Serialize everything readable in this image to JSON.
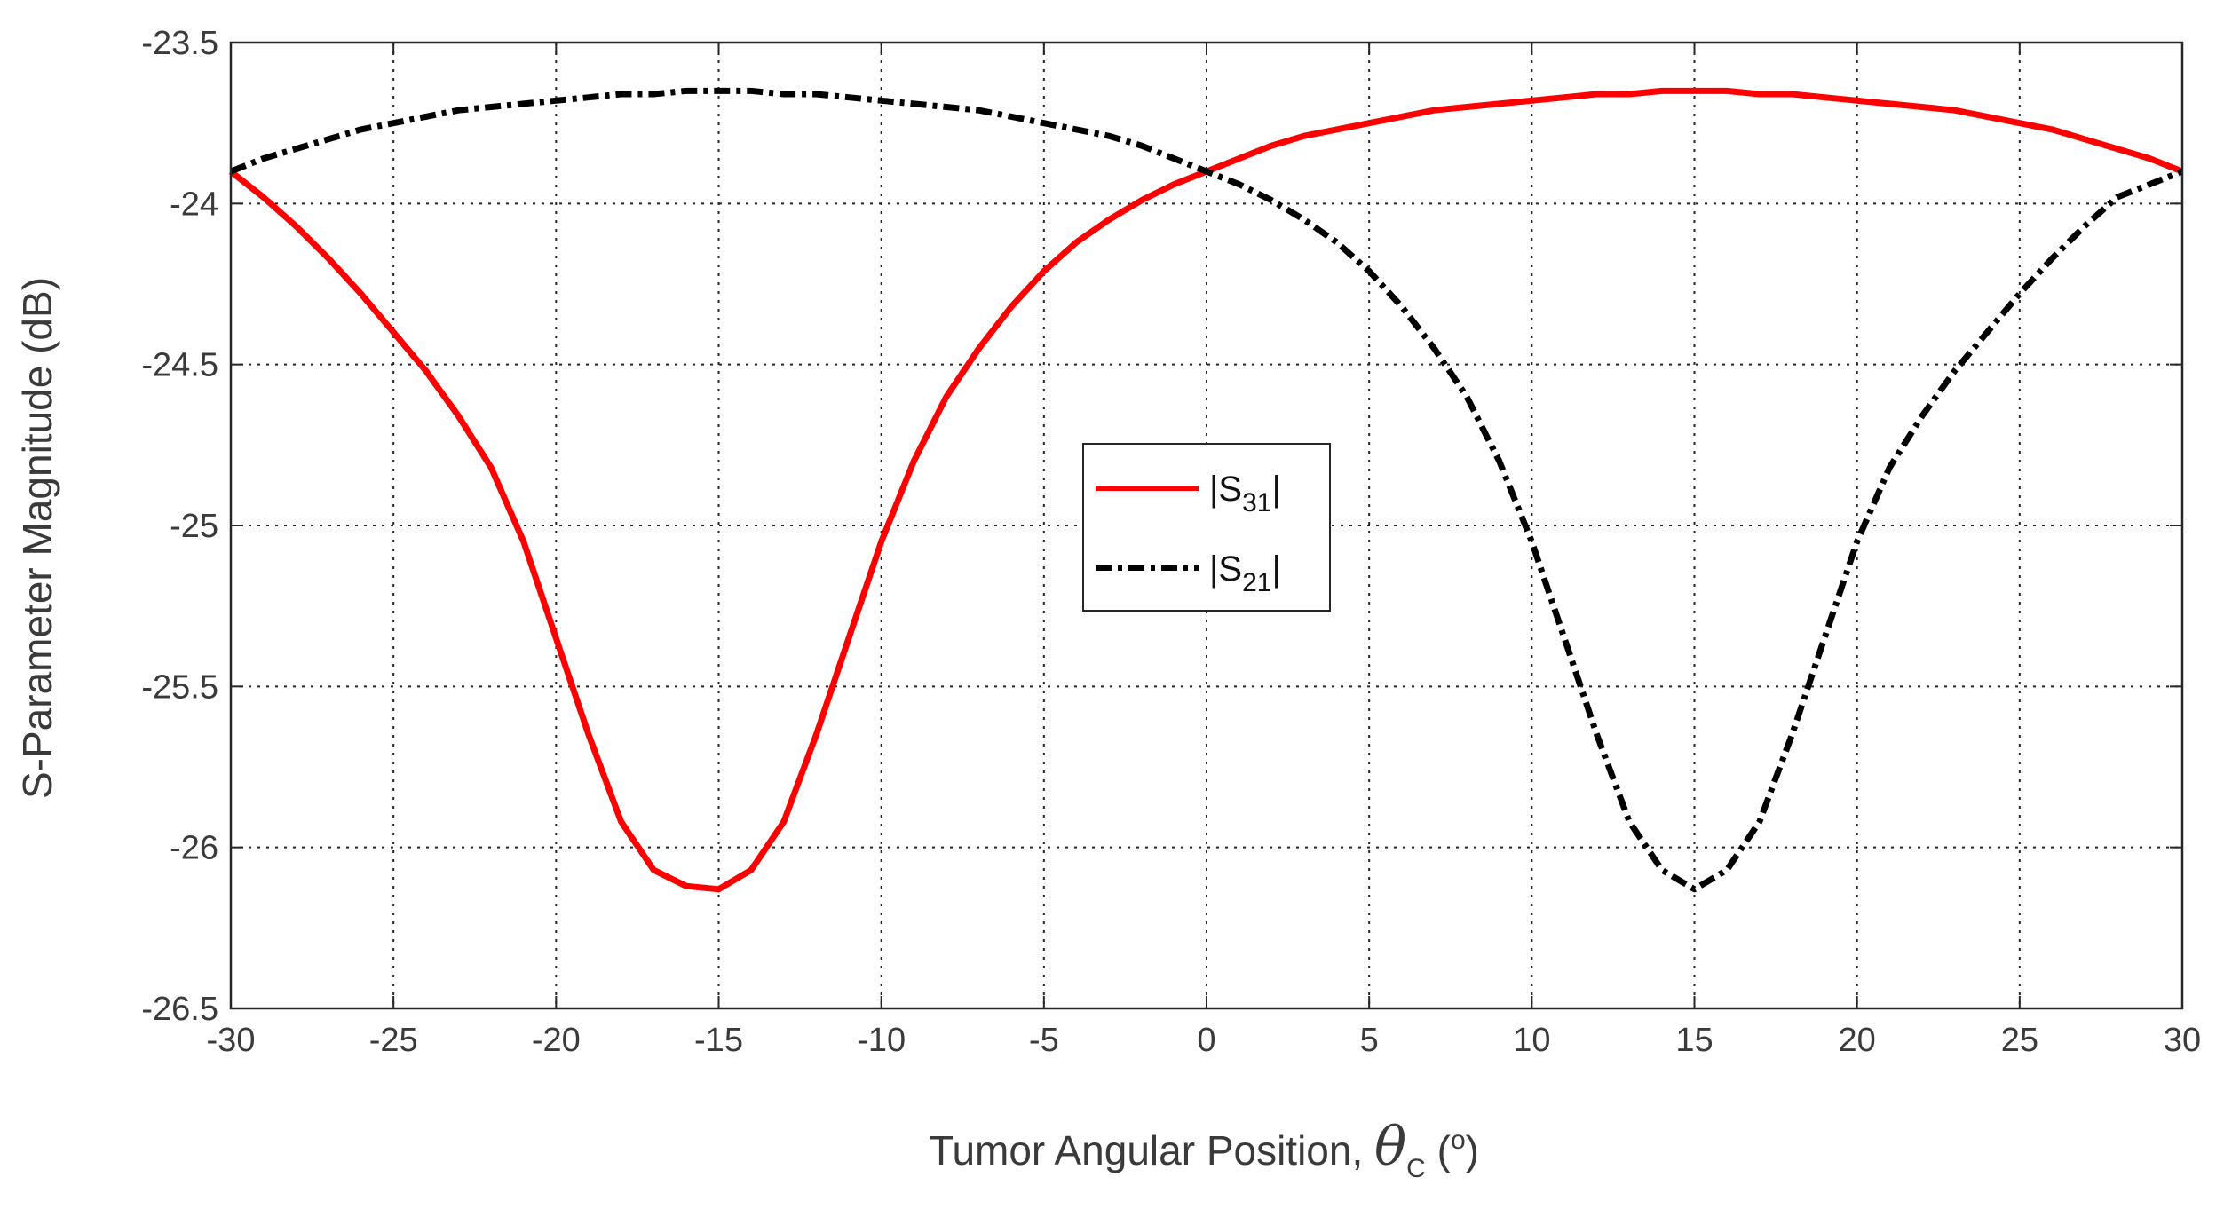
{
  "chart_data": {
    "type": "line",
    "xlabel": "Tumor Angular Position, ",
    "xlabel_symbol": "θ",
    "xlabel_symbol_sub": "C",
    "xlabel_unit": " (",
    "xlabel_unit_sup": "o",
    "xlabel_unit_close": ")",
    "ylabel": "S-Parameter Magnitude (dB)",
    "xlim": [
      -30,
      30
    ],
    "ylim": [
      -26.5,
      -23.5
    ],
    "xticks": [
      -30,
      -25,
      -20,
      -15,
      -10,
      -5,
      0,
      5,
      10,
      15,
      20,
      25,
      30
    ],
    "yticks": [
      -23.5,
      -24,
      -24.5,
      -25,
      -25.5,
      -26,
      -26.5
    ],
    "xtick_labels": [
      "-30",
      "-25",
      "-20",
      "-15",
      "-10",
      "-5",
      "0",
      "5",
      "10",
      "15",
      "20",
      "25",
      "30"
    ],
    "ytick_labels": [
      "-23.5",
      "-24",
      "-24.5",
      "-25",
      "-25.5",
      "-26",
      "-26.5"
    ],
    "grid": true,
    "legend_position": "center",
    "x": [
      -30,
      -29,
      -28,
      -27,
      -26,
      -25,
      -24,
      -23,
      -22,
      -21,
      -20,
      -19,
      -18,
      -17,
      -16,
      -15,
      -14,
      -13,
      -12,
      -11,
      -10,
      -9,
      -8,
      -7,
      -6,
      -5,
      -4,
      -3,
      -2,
      -1,
      0,
      1,
      2,
      3,
      4,
      5,
      6,
      7,
      8,
      9,
      10,
      11,
      12,
      13,
      14,
      15,
      16,
      17,
      18,
      19,
      20,
      21,
      22,
      23,
      24,
      25,
      26,
      27,
      28,
      29,
      30
    ],
    "series": [
      {
        "label_main": "|S",
        "label_sub": "31",
        "label_end": "|",
        "color": "#ff0000",
        "dash": "solid",
        "values": [
          -23.9,
          -23.98,
          -24.07,
          -24.17,
          -24.28,
          -24.4,
          -24.52,
          -24.66,
          -24.82,
          -25.05,
          -25.35,
          -25.65,
          -25.92,
          -26.07,
          -26.12,
          -26.13,
          -26.07,
          -25.92,
          -25.65,
          -25.35,
          -25.05,
          -24.8,
          -24.6,
          -24.45,
          -24.32,
          -24.21,
          -24.12,
          -24.05,
          -23.99,
          -23.94,
          -23.9,
          -23.86,
          -23.82,
          -23.79,
          -23.77,
          -23.75,
          -23.73,
          -23.71,
          -23.7,
          -23.69,
          -23.68,
          -23.67,
          -23.66,
          -23.66,
          -23.65,
          -23.65,
          -23.65,
          -23.66,
          -23.66,
          -23.67,
          -23.68,
          -23.69,
          -23.7,
          -23.71,
          -23.73,
          -23.75,
          -23.77,
          -23.8,
          -23.83,
          -23.86,
          -23.9
        ]
      },
      {
        "label_main": "|S",
        "label_sub": "21",
        "label_end": "|",
        "color": "#000000",
        "dash": "dashdot",
        "values": [
          -23.9,
          -23.86,
          -23.83,
          -23.8,
          -23.77,
          -23.75,
          -23.73,
          -23.71,
          -23.7,
          -23.69,
          -23.68,
          -23.67,
          -23.66,
          -23.66,
          -23.65,
          -23.65,
          -23.65,
          -23.66,
          -23.66,
          -23.67,
          -23.68,
          -23.69,
          -23.7,
          -23.71,
          -23.73,
          -23.75,
          -23.77,
          -23.79,
          -23.82,
          -23.86,
          -23.9,
          -23.94,
          -23.99,
          -24.05,
          -24.12,
          -24.21,
          -24.32,
          -24.45,
          -24.6,
          -24.8,
          -25.05,
          -25.35,
          -25.65,
          -25.92,
          -26.07,
          -26.13,
          -26.07,
          -25.92,
          -25.65,
          -25.35,
          -25.05,
          -24.82,
          -24.66,
          -24.52,
          -24.4,
          -24.28,
          -24.17,
          -24.07,
          -23.98,
          -23.94,
          -23.9
        ]
      }
    ]
  }
}
